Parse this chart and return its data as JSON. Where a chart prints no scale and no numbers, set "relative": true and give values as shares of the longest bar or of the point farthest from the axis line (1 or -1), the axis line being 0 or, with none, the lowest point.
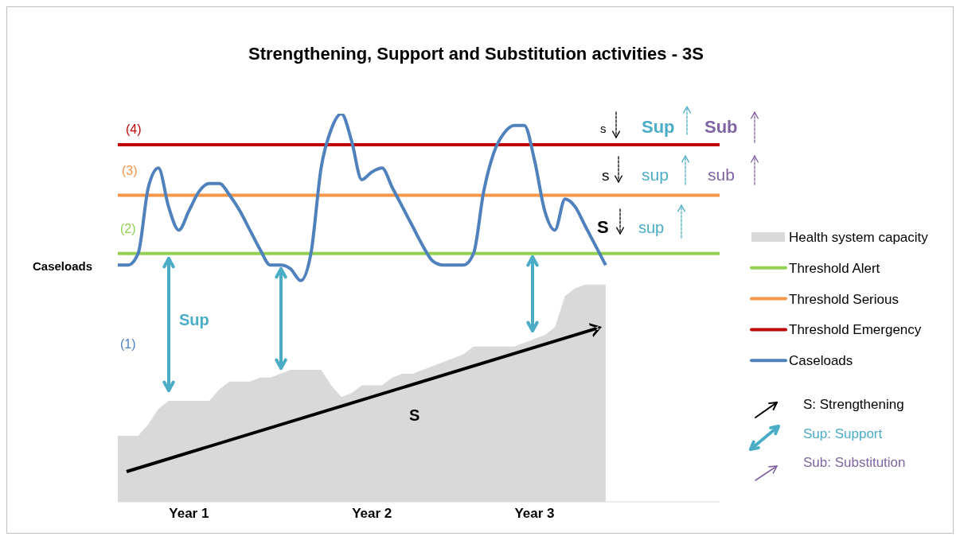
{
  "chart_data": {
    "type": "line",
    "title": "Strengthening, Support and Substitution activities - 3S",
    "relative": true,
    "legend": "right",
    "categories": [
      null,
      null,
      null,
      null,
      null,
      null,
      null,
      "Year 1",
      null,
      null,
      null,
      null,
      null,
      null,
      null,
      null,
      null,
      null,
      null,
      null,
      null,
      null,
      null,
      null,
      null,
      "Year 2",
      null,
      null,
      null,
      null,
      null,
      null,
      null,
      null,
      null,
      null,
      null,
      null,
      null,
      null,
      null,
      "Year 3",
      null,
      null,
      null,
      null,
      null,
      null,
      null
    ],
    "series": [
      {
        "name": "Health system capacity",
        "type": "area",
        "color": "#d9d9d9",
        "values": [
          0.17,
          0.17,
          0.17,
          0.2,
          0.24,
          0.26,
          0.26,
          0.26,
          0.26,
          0.26,
          0.29,
          0.31,
          0.31,
          0.31,
          0.32,
          0.32,
          0.33,
          0.34,
          0.34,
          0.34,
          0.34,
          0.3,
          0.27,
          0.28,
          0.3,
          0.3,
          0.3,
          0.32,
          0.33,
          0.33,
          0.34,
          0.35,
          0.36,
          0.37,
          0.38,
          0.4,
          0.4,
          0.4,
          0.4,
          0.4,
          0.41,
          0.42,
          0.43,
          0.45,
          0.53,
          0.55,
          0.56,
          0.56,
          0.56
        ]
      },
      {
        "name": "Caseloads",
        "type": "line",
        "color": "#4f81bd",
        "values": [
          0.61,
          0.61,
          0.64,
          0.81,
          0.86,
          0.76,
          0.7,
          0.75,
          0.8,
          0.82,
          0.82,
          0.79,
          0.75,
          0.7,
          0.65,
          0.61,
          0.61,
          0.6,
          0.57,
          0.64,
          0.86,
          0.96,
          1,
          0.93,
          0.83,
          0.85,
          0.86,
          0.81,
          0.76,
          0.71,
          0.66,
          0.62,
          0.61,
          0.61,
          0.61,
          0.64,
          0.8,
          0.9,
          0.95,
          0.97,
          0.97,
          0.88,
          0.75,
          0.7,
          0.78,
          0.76,
          0.71,
          0.66,
          0.61
        ]
      }
    ],
    "ref_lines": [
      {
        "axis": "y",
        "value": 0.64,
        "label": "Threshold Alert",
        "color": "#92d050"
      },
      {
        "axis": "y",
        "value": 0.79,
        "label": "Threshold Serious",
        "color": "#f79646"
      },
      {
        "axis": "y",
        "value": 0.92,
        "label": "Threshold Emergency",
        "color": "#c00000"
      }
    ],
    "annotations": [
      "(4)",
      "(3)",
      "(2)",
      "(1)",
      "Sup",
      "S",
      "s",
      "Sup",
      "Sub",
      "s",
      "sup",
      "sub",
      "S",
      "sup",
      "S: Strengthening",
      "Sup: Support",
      "Sub: Substitution"
    ]
  }
}
